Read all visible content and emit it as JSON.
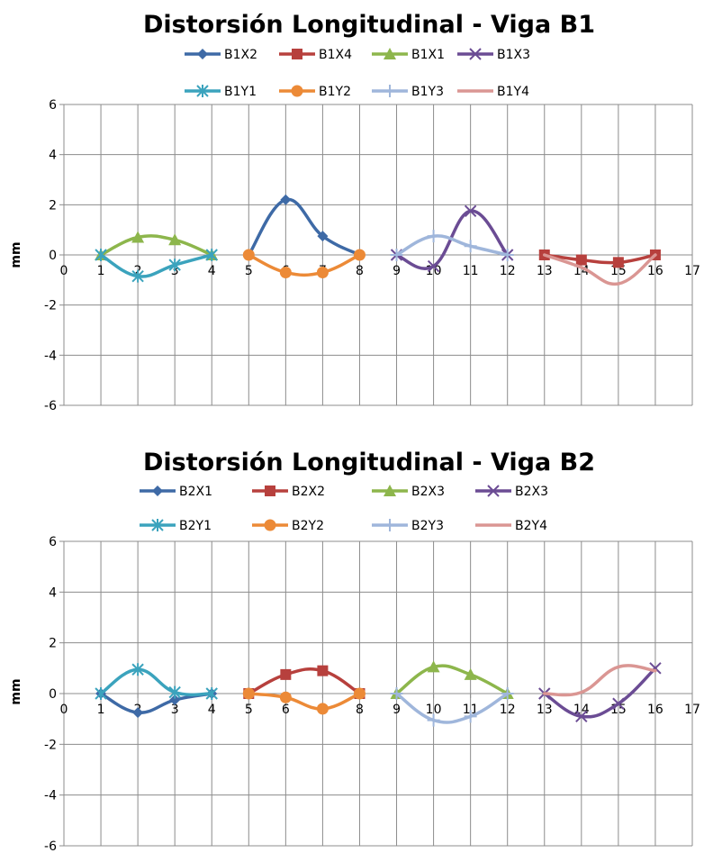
{
  "chart_data": [
    {
      "type": "line",
      "title": "Distorsión Longitudinal - Viga B1",
      "ylabel": "mm",
      "xlabel": "",
      "xlim": [
        0,
        17
      ],
      "ylim": [
        -6,
        6
      ],
      "x_ticks": [
        0,
        1,
        2,
        3,
        4,
        5,
        6,
        7,
        8,
        9,
        10,
        11,
        12,
        13,
        14,
        15,
        16,
        17
      ],
      "y_ticks": [
        -6,
        -4,
        -2,
        0,
        2,
        4,
        6
      ],
      "grid": true,
      "legend_position": "top",
      "series": [
        {
          "name": "B1X2",
          "color": "#3e6aa6",
          "marker": "diamond",
          "x": [
            5,
            6,
            7,
            8
          ],
          "y": [
            0,
            2.2,
            0.75,
            0
          ]
        },
        {
          "name": "B1X4",
          "color": "#b7403d",
          "marker": "square",
          "x": [
            13,
            14,
            15,
            16
          ],
          "y": [
            0,
            -0.2,
            -0.3,
            0
          ]
        },
        {
          "name": "B1X1",
          "color": "#8db64c",
          "marker": "triangle",
          "x": [
            1,
            2,
            3,
            4
          ],
          "y": [
            0,
            0.7,
            0.6,
            0
          ]
        },
        {
          "name": "B1X3",
          "color": "#6b4c94",
          "marker": "x",
          "x": [
            9,
            10,
            11,
            12
          ],
          "y": [
            0,
            -0.45,
            1.75,
            0
          ]
        },
        {
          "name": "B1Y1",
          "color": "#3ba3bd",
          "marker": "star",
          "x": [
            1,
            2,
            3,
            4
          ],
          "y": [
            0,
            -0.85,
            -0.4,
            0
          ]
        },
        {
          "name": "B1Y2",
          "color": "#ec8a37",
          "marker": "circle",
          "x": [
            5,
            6,
            7,
            8
          ],
          "y": [
            0,
            -0.7,
            -0.7,
            0
          ]
        },
        {
          "name": "B1Y3",
          "color": "#9fb6db",
          "marker": "plus",
          "x": [
            9,
            10,
            11,
            12
          ],
          "y": [
            0,
            0.75,
            0.35,
            0
          ]
        },
        {
          "name": "B1Y4",
          "color": "#da9693",
          "marker": "none",
          "x": [
            13,
            14,
            15,
            16
          ],
          "y": [
            0,
            -0.5,
            -1.15,
            0
          ]
        }
      ]
    },
    {
      "type": "line",
      "title": "Distorsión Longitudinal - Viga B2",
      "ylabel": "mm",
      "xlabel": "",
      "xlim": [
        0,
        17
      ],
      "ylim": [
        -6,
        6
      ],
      "x_ticks": [
        0,
        1,
        2,
        3,
        4,
        5,
        6,
        7,
        8,
        9,
        10,
        11,
        12,
        13,
        14,
        15,
        16,
        17
      ],
      "y_ticks": [
        -6,
        -4,
        -2,
        0,
        2,
        4,
        6
      ],
      "grid": true,
      "legend_position": "top",
      "series": [
        {
          "name": "B2X1",
          "color": "#3e6aa6",
          "marker": "diamond",
          "x": [
            1,
            2,
            3,
            4
          ],
          "y": [
            0,
            -0.75,
            -0.25,
            0
          ]
        },
        {
          "name": "B2X2",
          "color": "#b7403d",
          "marker": "square",
          "x": [
            5,
            6,
            7,
            8
          ],
          "y": [
            0,
            0.75,
            0.9,
            0
          ]
        },
        {
          "name": "B2X3",
          "color": "#8db64c",
          "marker": "triangle",
          "x": [
            9,
            10,
            11,
            12
          ],
          "y": [
            0,
            1.05,
            0.75,
            0
          ]
        },
        {
          "name": "B2X3",
          "color": "#6b4c94",
          "marker": "x",
          "x": [
            13,
            14,
            15,
            16
          ],
          "y": [
            0,
            -0.9,
            -0.4,
            1.0
          ]
        },
        {
          "name": "B2Y1",
          "color": "#3ba3bd",
          "marker": "star",
          "x": [
            1,
            2,
            3,
            4
          ],
          "y": [
            0,
            0.95,
            0.05,
            0
          ]
        },
        {
          "name": "B2Y2",
          "color": "#ec8a37",
          "marker": "circle",
          "x": [
            5,
            6,
            7,
            8
          ],
          "y": [
            0,
            -0.15,
            -0.6,
            0
          ]
        },
        {
          "name": "B2Y3",
          "color": "#9fb6db",
          "marker": "plus",
          "x": [
            9,
            10,
            11,
            12
          ],
          "y": [
            0,
            -1.05,
            -0.9,
            0
          ]
        },
        {
          "name": "B2Y4",
          "color": "#da9693",
          "marker": "none",
          "x": [
            13,
            14,
            15,
            16
          ],
          "y": [
            0,
            0.05,
            1.05,
            0.9
          ]
        }
      ]
    }
  ]
}
